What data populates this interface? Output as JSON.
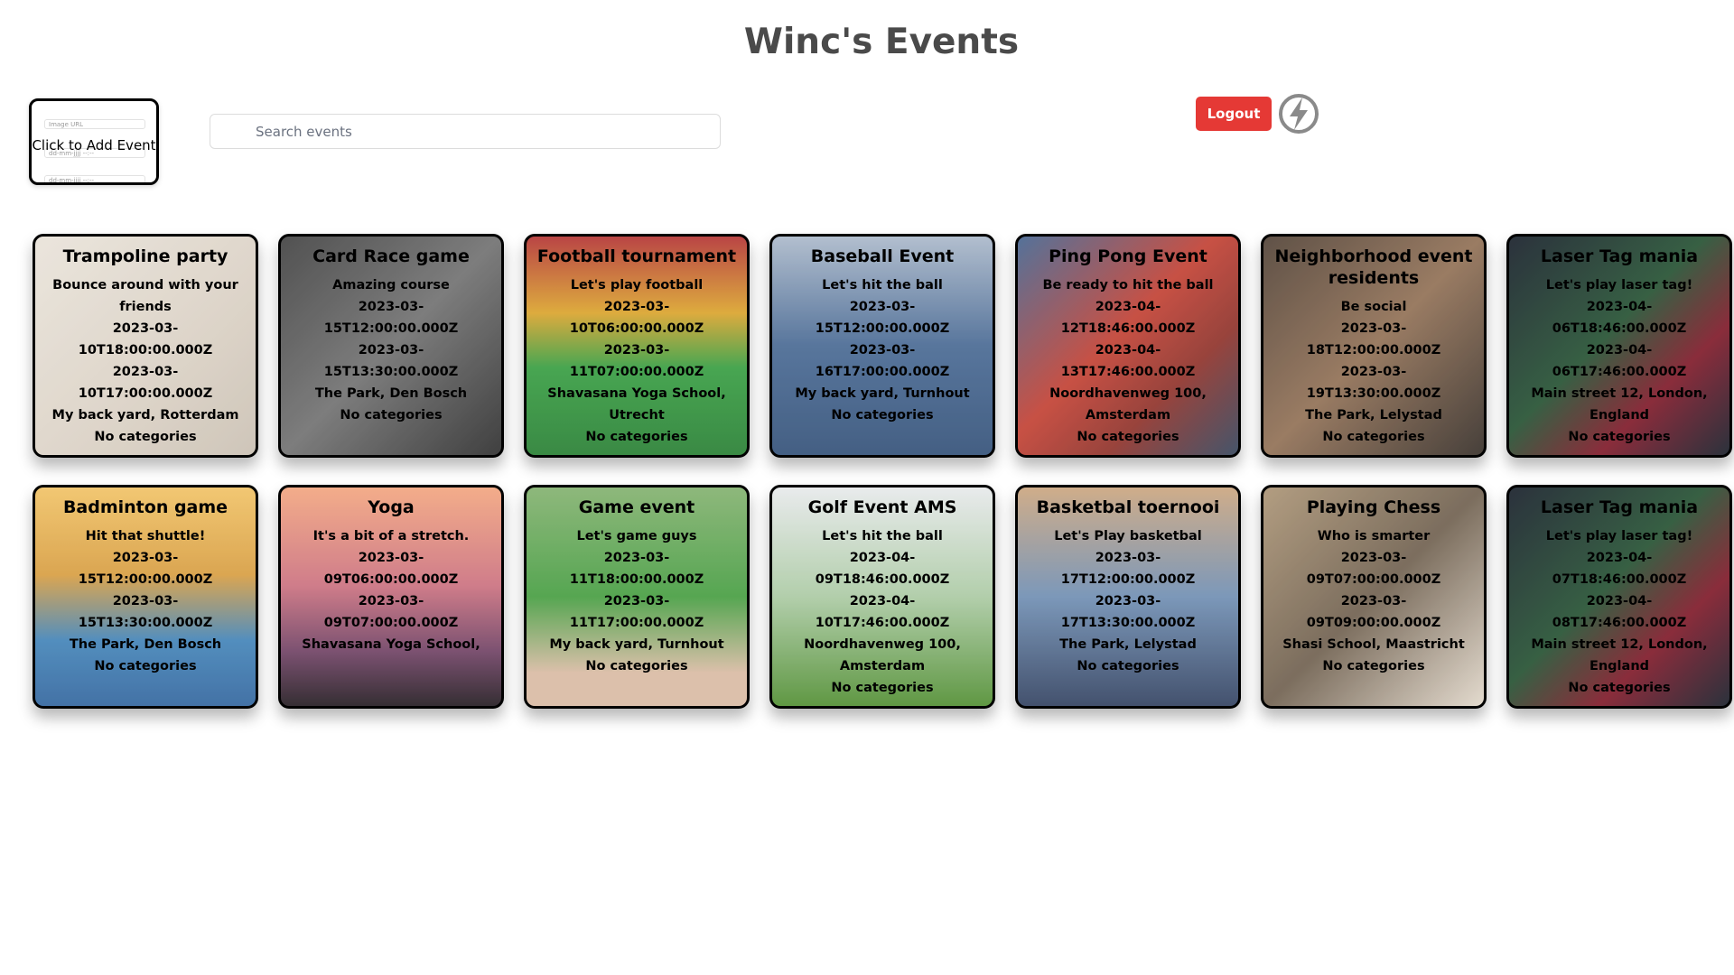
{
  "app": {
    "title": "Winc's Events"
  },
  "add_event": {
    "label": "Click to Add Event",
    "image_field": "Image URL",
    "start_field": "dd-mm-jjjj --:--",
    "end_field": "dd-mm-jjjj --:--"
  },
  "search": {
    "placeholder": "Search events",
    "value": ""
  },
  "header": {
    "logout_label": "Logout"
  },
  "icons": {
    "search": "search-icon",
    "brand": "lightning-bolt-icon"
  },
  "colors": {
    "logout": "#e53935",
    "card_border": "#000000",
    "title": "#4a4a4a"
  },
  "events": [
    {
      "title": "Trampoline party",
      "description": "Bounce around with your friends",
      "start": "2023-03-10T18:00:00.000Z",
      "end": "2023-03-10T17:00:00.000Z",
      "location": "My back yard, Rotterdam",
      "categories": "No categories"
    },
    {
      "title": "Card Race game",
      "description": "Amazing course",
      "start": "2023-03-15T12:00:00.000Z",
      "end": "2023-03-15T13:30:00.000Z",
      "location": "The Park, Den Bosch",
      "categories": "No categories"
    },
    {
      "title": "Football tournament",
      "description": "Let's play football",
      "start": "2023-03-10T06:00:00.000Z",
      "end": "2023-03-11T07:00:00.000Z",
      "location": "Shavasana Yoga School, Utrecht",
      "categories": "No categories"
    },
    {
      "title": "Baseball Event",
      "description": "Let's hit the ball",
      "start": "2023-03-15T12:00:00.000Z",
      "end": "2023-03-16T17:00:00.000Z",
      "location": "My back yard, Turnhout",
      "categories": "No categories"
    },
    {
      "title": "Ping Pong Event",
      "description": "Be ready to hit the ball",
      "start": "2023-04-12T18:46:00.000Z",
      "end": "2023-04-13T17:46:00.000Z",
      "location": "Noordhavenweg 100, Amsterdam",
      "categories": "No categories"
    },
    {
      "title": "Neighborhood event residents",
      "description": "Be social",
      "start": "2023-03-18T12:00:00.000Z",
      "end": "2023-03-19T13:30:00.000Z",
      "location": "The Park, Lelystad",
      "categories": "No categories"
    },
    {
      "title": "Laser Tag mania",
      "description": "Let's play laser tag!",
      "start": "2023-04-06T18:46:00.000Z",
      "end": "2023-04-06T17:46:00.000Z",
      "location": "Main street 12, London, England",
      "categories": "No categories"
    },
    {
      "title": "Badminton game",
      "description": "Hit that shuttle!",
      "start": "2023-03-15T12:00:00.000Z",
      "end": "2023-03-15T13:30:00.000Z",
      "location": "The Park, Den Bosch",
      "categories": "No categories"
    },
    {
      "title": "Yoga",
      "description": "It's a bit of a stretch.",
      "start": "2023-03-09T06:00:00.000Z",
      "end": "2023-03-09T07:00:00.000Z",
      "location": "Shavasana Yoga School,",
      "categories": ""
    },
    {
      "title": "Game event",
      "description": "Let's game guys",
      "start": "2023-03-11T18:00:00.000Z",
      "end": "2023-03-11T17:00:00.000Z",
      "location": "My back yard, Turnhout",
      "categories": "No categories"
    },
    {
      "title": "Golf Event AMS",
      "description": "Let's hit the ball",
      "start": "2023-04-09T18:46:00.000Z",
      "end": "2023-04-10T17:46:00.000Z",
      "location": "Noordhavenweg 100, Amsterdam",
      "categories": "No categories"
    },
    {
      "title": "Basketbal toernooi",
      "description": "Let's Play basketbal",
      "start": "2023-03-17T12:00:00.000Z",
      "end": "2023-03-17T13:30:00.000Z",
      "location": "The Park, Lelystad",
      "categories": "No categories"
    },
    {
      "title": "Playing Chess",
      "description": "Who is smarter",
      "start": "2023-03-09T07:00:00.000Z",
      "end": "2023-03-09T09:00:00.000Z",
      "location": "Shasi School, Maastricht",
      "categories": "No categories"
    },
    {
      "title": "Laser Tag mania",
      "description": "Let's play laser tag!",
      "start": "2023-04-07T18:46:00.000Z",
      "end": "2023-04-08T17:46:00.000Z",
      "location": "Main street 12, London, England",
      "categories": "No categories"
    }
  ]
}
